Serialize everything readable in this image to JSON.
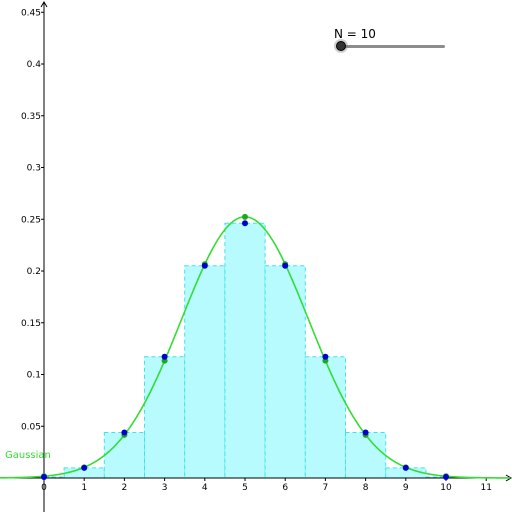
{
  "slider": {
    "name": "N",
    "value": 10,
    "label": "N = 10",
    "min": 1,
    "max": 40
  },
  "colors": {
    "bar_fill": "#b7fbff",
    "bar_stroke": "#45e0ee",
    "curve": "#33dd33",
    "gaussian_point": "#1aaa1a",
    "binomial_point": "#0000cc",
    "axis": "#000000",
    "slider_track": "#8c8c8c",
    "slider_knob": "#333333"
  },
  "chart_data": {
    "type": "bar",
    "n": 10,
    "p": 0.5,
    "x_ticks": [
      "0",
      "1",
      "2",
      "3",
      "4",
      "5",
      "6",
      "7",
      "8",
      "9",
      "10",
      "11"
    ],
    "y_ticks": [
      "0.05",
      "0.1",
      "0.15",
      "0.2",
      "0.25",
      "0.3",
      "0.35",
      "0.4",
      "0.45"
    ],
    "xlim": [
      -1.1,
      11.6
    ],
    "ylim": [
      0,
      0.455
    ],
    "bars": [
      {
        "x": 0,
        "p": 0.000977
      },
      {
        "x": 1,
        "p": 0.009766
      },
      {
        "x": 2,
        "p": 0.043945
      },
      {
        "x": 3,
        "p": 0.117188
      },
      {
        "x": 4,
        "p": 0.205078
      },
      {
        "x": 5,
        "p": 0.246094
      },
      {
        "x": 6,
        "p": 0.205078
      },
      {
        "x": 7,
        "p": 0.117188
      },
      {
        "x": 8,
        "p": 0.043945
      },
      {
        "x": 9,
        "p": 0.009766
      },
      {
        "x": 10,
        "p": 0.000977
      }
    ],
    "gaussian": {
      "label": "Gaussian",
      "mean": 5,
      "sd": 1.5811
    }
  }
}
